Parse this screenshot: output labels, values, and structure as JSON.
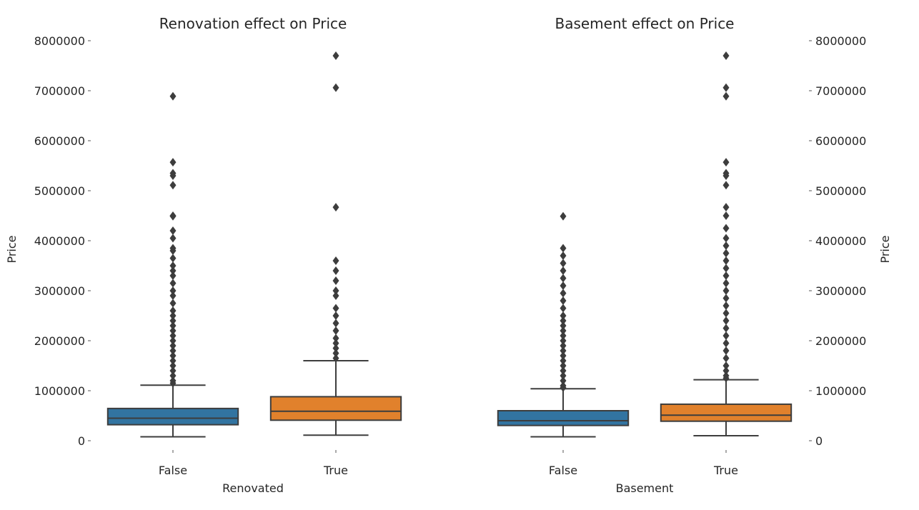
{
  "chart_data": [
    {
      "type": "box",
      "title": "Renovation effect on Price",
      "xlabel": "Renovated",
      "ylabel": "Price",
      "ylim": [
        -100000,
        8100000
      ],
      "yticks": [
        0,
        1000000,
        2000000,
        3000000,
        4000000,
        5000000,
        6000000,
        7000000,
        8000000
      ],
      "ytick_labels": [
        "0",
        "1000000",
        "2000000",
        "3000000",
        "4000000",
        "5000000",
        "6000000",
        "7000000",
        "8000000"
      ],
      "y_axis_side": "left",
      "grid": false,
      "categories": [
        "False",
        "True"
      ],
      "colors": [
        "#3274a1",
        "#e1812c"
      ],
      "boxes": [
        {
          "category": "False",
          "whisker_low": 78000,
          "q1": 320000,
          "median": 450000,
          "q3": 645000,
          "whisker_high": 1110000,
          "outliers": [
            6890000,
            5570000,
            5350000,
            5300000,
            5110000,
            4500000,
            4490000,
            4200000,
            4050000,
            3850000,
            3800000,
            3650000,
            3500000,
            3400000,
            3300000,
            3150000,
            3000000,
            2900000,
            2750000,
            2600000,
            2500000,
            2400000,
            2300000,
            2200000,
            2100000,
            2000000,
            1900000,
            1800000,
            1700000,
            1600000,
            1500000,
            1400000,
            1300000,
            1200000,
            1150000
          ]
        },
        {
          "category": "True",
          "whisker_low": 110000,
          "q1": 410000,
          "median": 590000,
          "q3": 880000,
          "whisker_high": 1600000,
          "outliers": [
            7700000,
            7060000,
            4670000,
            3600000,
            3400000,
            3200000,
            3000000,
            2900000,
            2650000,
            2500000,
            2350000,
            2200000,
            2050000,
            1950000,
            1850000,
            1750000,
            1650000
          ]
        }
      ]
    },
    {
      "type": "box",
      "title": "Basement effect on Price",
      "xlabel": "Basement",
      "ylabel": "Price",
      "ylim": [
        -100000,
        8100000
      ],
      "yticks": [
        0,
        1000000,
        2000000,
        3000000,
        4000000,
        5000000,
        6000000,
        7000000,
        8000000
      ],
      "ytick_labels": [
        "0",
        "1000000",
        "2000000",
        "3000000",
        "4000000",
        "5000000",
        "6000000",
        "7000000",
        "8000000"
      ],
      "y_axis_side": "right",
      "grid": false,
      "categories": [
        "False",
        "True"
      ],
      "colors": [
        "#3274a1",
        "#e1812c"
      ],
      "boxes": [
        {
          "category": "False",
          "whisker_low": 78000,
          "q1": 305000,
          "median": 400000,
          "q3": 600000,
          "whisker_high": 1040000,
          "outliers": [
            4490000,
            3850000,
            3700000,
            3550000,
            3400000,
            3250000,
            3100000,
            2950000,
            2800000,
            2650000,
            2500000,
            2400000,
            2300000,
            2200000,
            2100000,
            2000000,
            1900000,
            1800000,
            1700000,
            1600000,
            1500000,
            1400000,
            1300000,
            1200000,
            1100000,
            1060000
          ]
        },
        {
          "category": "True",
          "whisker_low": 100000,
          "q1": 390000,
          "median": 510000,
          "q3": 730000,
          "whisker_high": 1220000,
          "outliers": [
            7700000,
            7060000,
            6890000,
            5570000,
            5350000,
            5300000,
            5110000,
            4670000,
            4500000,
            4250000,
            4050000,
            3900000,
            3750000,
            3600000,
            3450000,
            3300000,
            3150000,
            3000000,
            2850000,
            2700000,
            2550000,
            2400000,
            2250000,
            2100000,
            1950000,
            1800000,
            1650000,
            1500000,
            1400000,
            1300000,
            1250000
          ]
        }
      ]
    }
  ]
}
